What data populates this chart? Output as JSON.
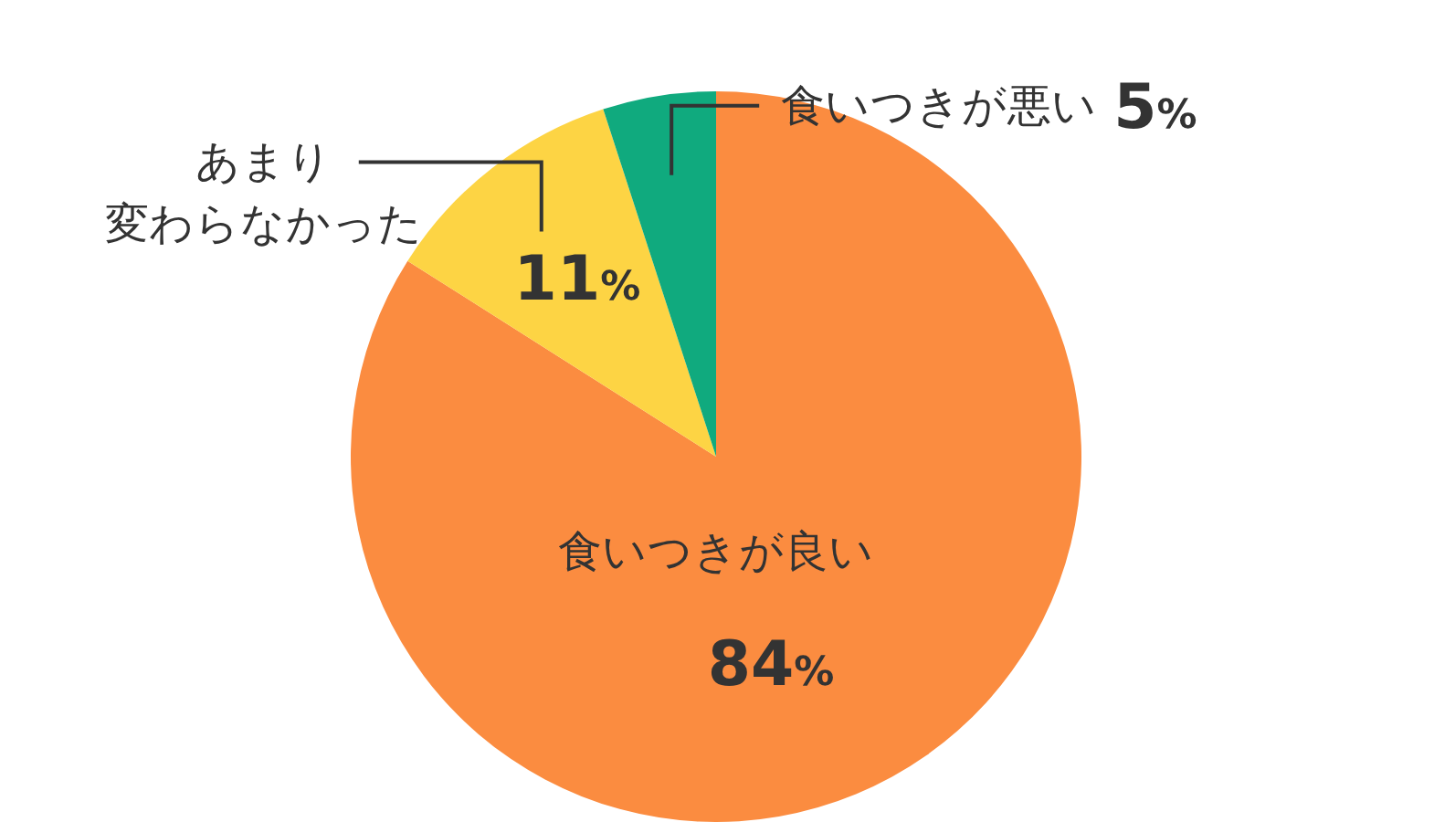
{
  "chart_data": {
    "type": "pie",
    "categories": [
      "食いつきが良い",
      "あまり変わらなかった",
      "食いつきが悪い"
    ],
    "values": [
      84,
      11,
      5
    ],
    "colors": [
      "#fb8c40",
      "#fdd444",
      "#10aa7e"
    ],
    "value_labels": [
      "84%",
      "11%",
      "5%"
    ]
  }
}
